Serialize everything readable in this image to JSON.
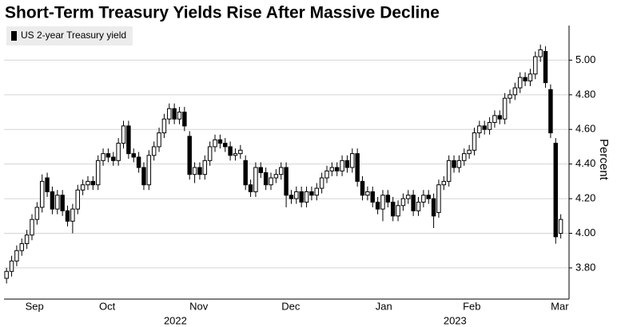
{
  "chart_data": {
    "type": "candlestick",
    "title": "Short-Term Treasury Yields Rise After Massive Decline",
    "y_label": "Percent",
    "series": [
      {
        "name": "US 2-year Treasury yield",
        "color": "#000000",
        "up_color": "#ffffff",
        "down_color": "#000000",
        "open": [
          3.74,
          3.78,
          3.84,
          3.9,
          3.94,
          3.99,
          4.08,
          4.15,
          4.32,
          4.24,
          4.14,
          4.22,
          4.13,
          4.07,
          4.14,
          4.25,
          4.28,
          4.3,
          4.28,
          4.42,
          4.46,
          4.44,
          4.42,
          4.52,
          4.62,
          4.46,
          4.44,
          4.38,
          4.28,
          4.45,
          4.5,
          4.58,
          4.66,
          4.72,
          4.66,
          4.7,
          4.56,
          4.34,
          4.38,
          4.34,
          4.42,
          4.5,
          4.54,
          4.52,
          4.5,
          4.45,
          4.46,
          4.42,
          4.28,
          4.24,
          4.38,
          4.35,
          4.28,
          4.32,
          4.34,
          4.38,
          4.22,
          4.2,
          4.24,
          4.18,
          4.24,
          4.22,
          4.26,
          4.32,
          4.36,
          4.38,
          4.36,
          4.42,
          4.38,
          4.46,
          4.3,
          4.22,
          4.24,
          4.18,
          4.14,
          4.22,
          4.18,
          4.1,
          4.16,
          4.2,
          4.22,
          4.13,
          4.18,
          4.22,
          4.2,
          4.12,
          4.28,
          4.3,
          4.42,
          4.38,
          4.42,
          4.46,
          4.48,
          4.58,
          4.62,
          4.6,
          4.64,
          4.68,
          4.66,
          4.78,
          4.8,
          4.84,
          4.9,
          4.88,
          4.92,
          5.02,
          5.05,
          4.83,
          4.52,
          4.0
        ],
        "high": [
          3.8,
          3.87,
          3.93,
          3.97,
          4.02,
          4.11,
          4.18,
          4.34,
          4.35,
          4.27,
          4.25,
          4.25,
          4.16,
          4.17,
          4.28,
          4.31,
          4.33,
          4.33,
          4.45,
          4.49,
          4.49,
          4.47,
          4.55,
          4.65,
          4.65,
          4.49,
          4.47,
          4.41,
          4.48,
          4.53,
          4.61,
          4.69,
          4.75,
          4.75,
          4.73,
          4.73,
          4.59,
          4.41,
          4.41,
          4.45,
          4.53,
          4.57,
          4.57,
          4.55,
          4.53,
          4.49,
          4.51,
          4.45,
          4.31,
          4.41,
          4.41,
          4.38,
          4.35,
          4.37,
          4.41,
          4.41,
          4.25,
          4.27,
          4.27,
          4.27,
          4.27,
          4.29,
          4.35,
          4.39,
          4.41,
          4.41,
          4.45,
          4.45,
          4.49,
          4.49,
          4.33,
          4.27,
          4.27,
          4.21,
          4.25,
          4.25,
          4.21,
          4.19,
          4.23,
          4.25,
          4.25,
          4.21,
          4.25,
          4.25,
          4.23,
          4.31,
          4.33,
          4.45,
          4.45,
          4.45,
          4.49,
          4.51,
          4.61,
          4.65,
          4.65,
          4.67,
          4.71,
          4.71,
          4.81,
          4.83,
          4.87,
          4.93,
          4.93,
          4.95,
          5.05,
          5.09,
          5.08,
          4.86,
          4.55,
          4.11
        ],
        "low": [
          3.71,
          3.75,
          3.81,
          3.87,
          3.91,
          3.96,
          4.05,
          4.12,
          4.21,
          4.11,
          4.11,
          4.1,
          4.04,
          4.0,
          4.11,
          4.22,
          4.25,
          4.25,
          4.25,
          4.39,
          4.41,
          4.39,
          4.39,
          4.49,
          4.43,
          4.41,
          4.35,
          4.25,
          4.25,
          4.42,
          4.47,
          4.55,
          4.63,
          4.63,
          4.63,
          4.59,
          4.31,
          4.29,
          4.31,
          4.31,
          4.39,
          4.47,
          4.49,
          4.47,
          4.42,
          4.42,
          4.43,
          4.25,
          4.21,
          4.21,
          4.32,
          4.25,
          4.25,
          4.29,
          4.31,
          4.15,
          4.17,
          4.17,
          4.15,
          4.15,
          4.19,
          4.19,
          4.23,
          4.29,
          4.33,
          4.33,
          4.33,
          4.35,
          4.35,
          4.27,
          4.19,
          4.19,
          4.15,
          4.11,
          4.07,
          4.15,
          4.07,
          4.07,
          4.13,
          4.17,
          4.1,
          4.1,
          4.15,
          4.17,
          4.03,
          4.09,
          4.25,
          4.27,
          4.35,
          4.35,
          4.39,
          4.43,
          4.45,
          4.55,
          4.57,
          4.57,
          4.61,
          4.63,
          4.63,
          4.75,
          4.77,
          4.81,
          4.85,
          4.85,
          4.89,
          4.99,
          4.84,
          4.55,
          3.94,
          3.97
        ],
        "close": [
          3.78,
          3.84,
          3.9,
          3.94,
          3.99,
          4.08,
          4.15,
          4.3,
          4.24,
          4.14,
          4.22,
          4.13,
          4.07,
          4.14,
          4.25,
          4.28,
          4.3,
          4.28,
          4.42,
          4.46,
          4.44,
          4.42,
          4.52,
          4.62,
          4.46,
          4.44,
          4.38,
          4.28,
          4.45,
          4.5,
          4.58,
          4.66,
          4.72,
          4.66,
          4.7,
          4.62,
          4.34,
          4.38,
          4.34,
          4.42,
          4.5,
          4.54,
          4.52,
          4.5,
          4.45,
          4.46,
          4.48,
          4.28,
          4.24,
          4.38,
          4.35,
          4.28,
          4.32,
          4.34,
          4.38,
          4.22,
          4.2,
          4.24,
          4.18,
          4.24,
          4.22,
          4.26,
          4.32,
          4.36,
          4.38,
          4.36,
          4.42,
          4.38,
          4.46,
          4.3,
          4.22,
          4.24,
          4.18,
          4.14,
          4.22,
          4.18,
          4.1,
          4.16,
          4.2,
          4.22,
          4.13,
          4.18,
          4.22,
          4.2,
          4.1,
          4.28,
          4.3,
          4.42,
          4.38,
          4.42,
          4.46,
          4.48,
          4.58,
          4.62,
          4.6,
          4.64,
          4.68,
          4.66,
          4.78,
          4.8,
          4.84,
          4.9,
          4.88,
          4.92,
          5.02,
          5.06,
          4.87,
          4.58,
          3.98,
          4.08
        ]
      }
    ],
    "xlim": [
      -0.5,
      110
    ],
    "xticks": [
      {
        "value": 5.5,
        "label": "Sep"
      },
      {
        "value": 19.8,
        "label": "Oct"
      },
      {
        "value": 37.8,
        "label": "Nov"
      },
      {
        "value": 55.9,
        "label": "Dec"
      },
      {
        "value": 74.2,
        "label": "Jan"
      },
      {
        "value": 91.5,
        "label": "Feb"
      },
      {
        "value": 108.8,
        "label": "Mar"
      }
    ],
    "year_ticks": [
      {
        "value": 33.2,
        "label": "2022"
      },
      {
        "value": 88.2,
        "label": "2023"
      }
    ],
    "ylim": [
      3.62,
      5.2
    ],
    "yticks": [
      {
        "value": 3.8,
        "label": "3.80"
      },
      {
        "value": 4.0,
        "label": "4.00"
      },
      {
        "value": 4.2,
        "label": "4.20"
      },
      {
        "value": 4.4,
        "label": "4.40"
      },
      {
        "value": 4.6,
        "label": "4.60"
      },
      {
        "value": 4.8,
        "label": "4.80"
      },
      {
        "value": 5.0,
        "label": "5.00"
      }
    ],
    "grid": true
  }
}
